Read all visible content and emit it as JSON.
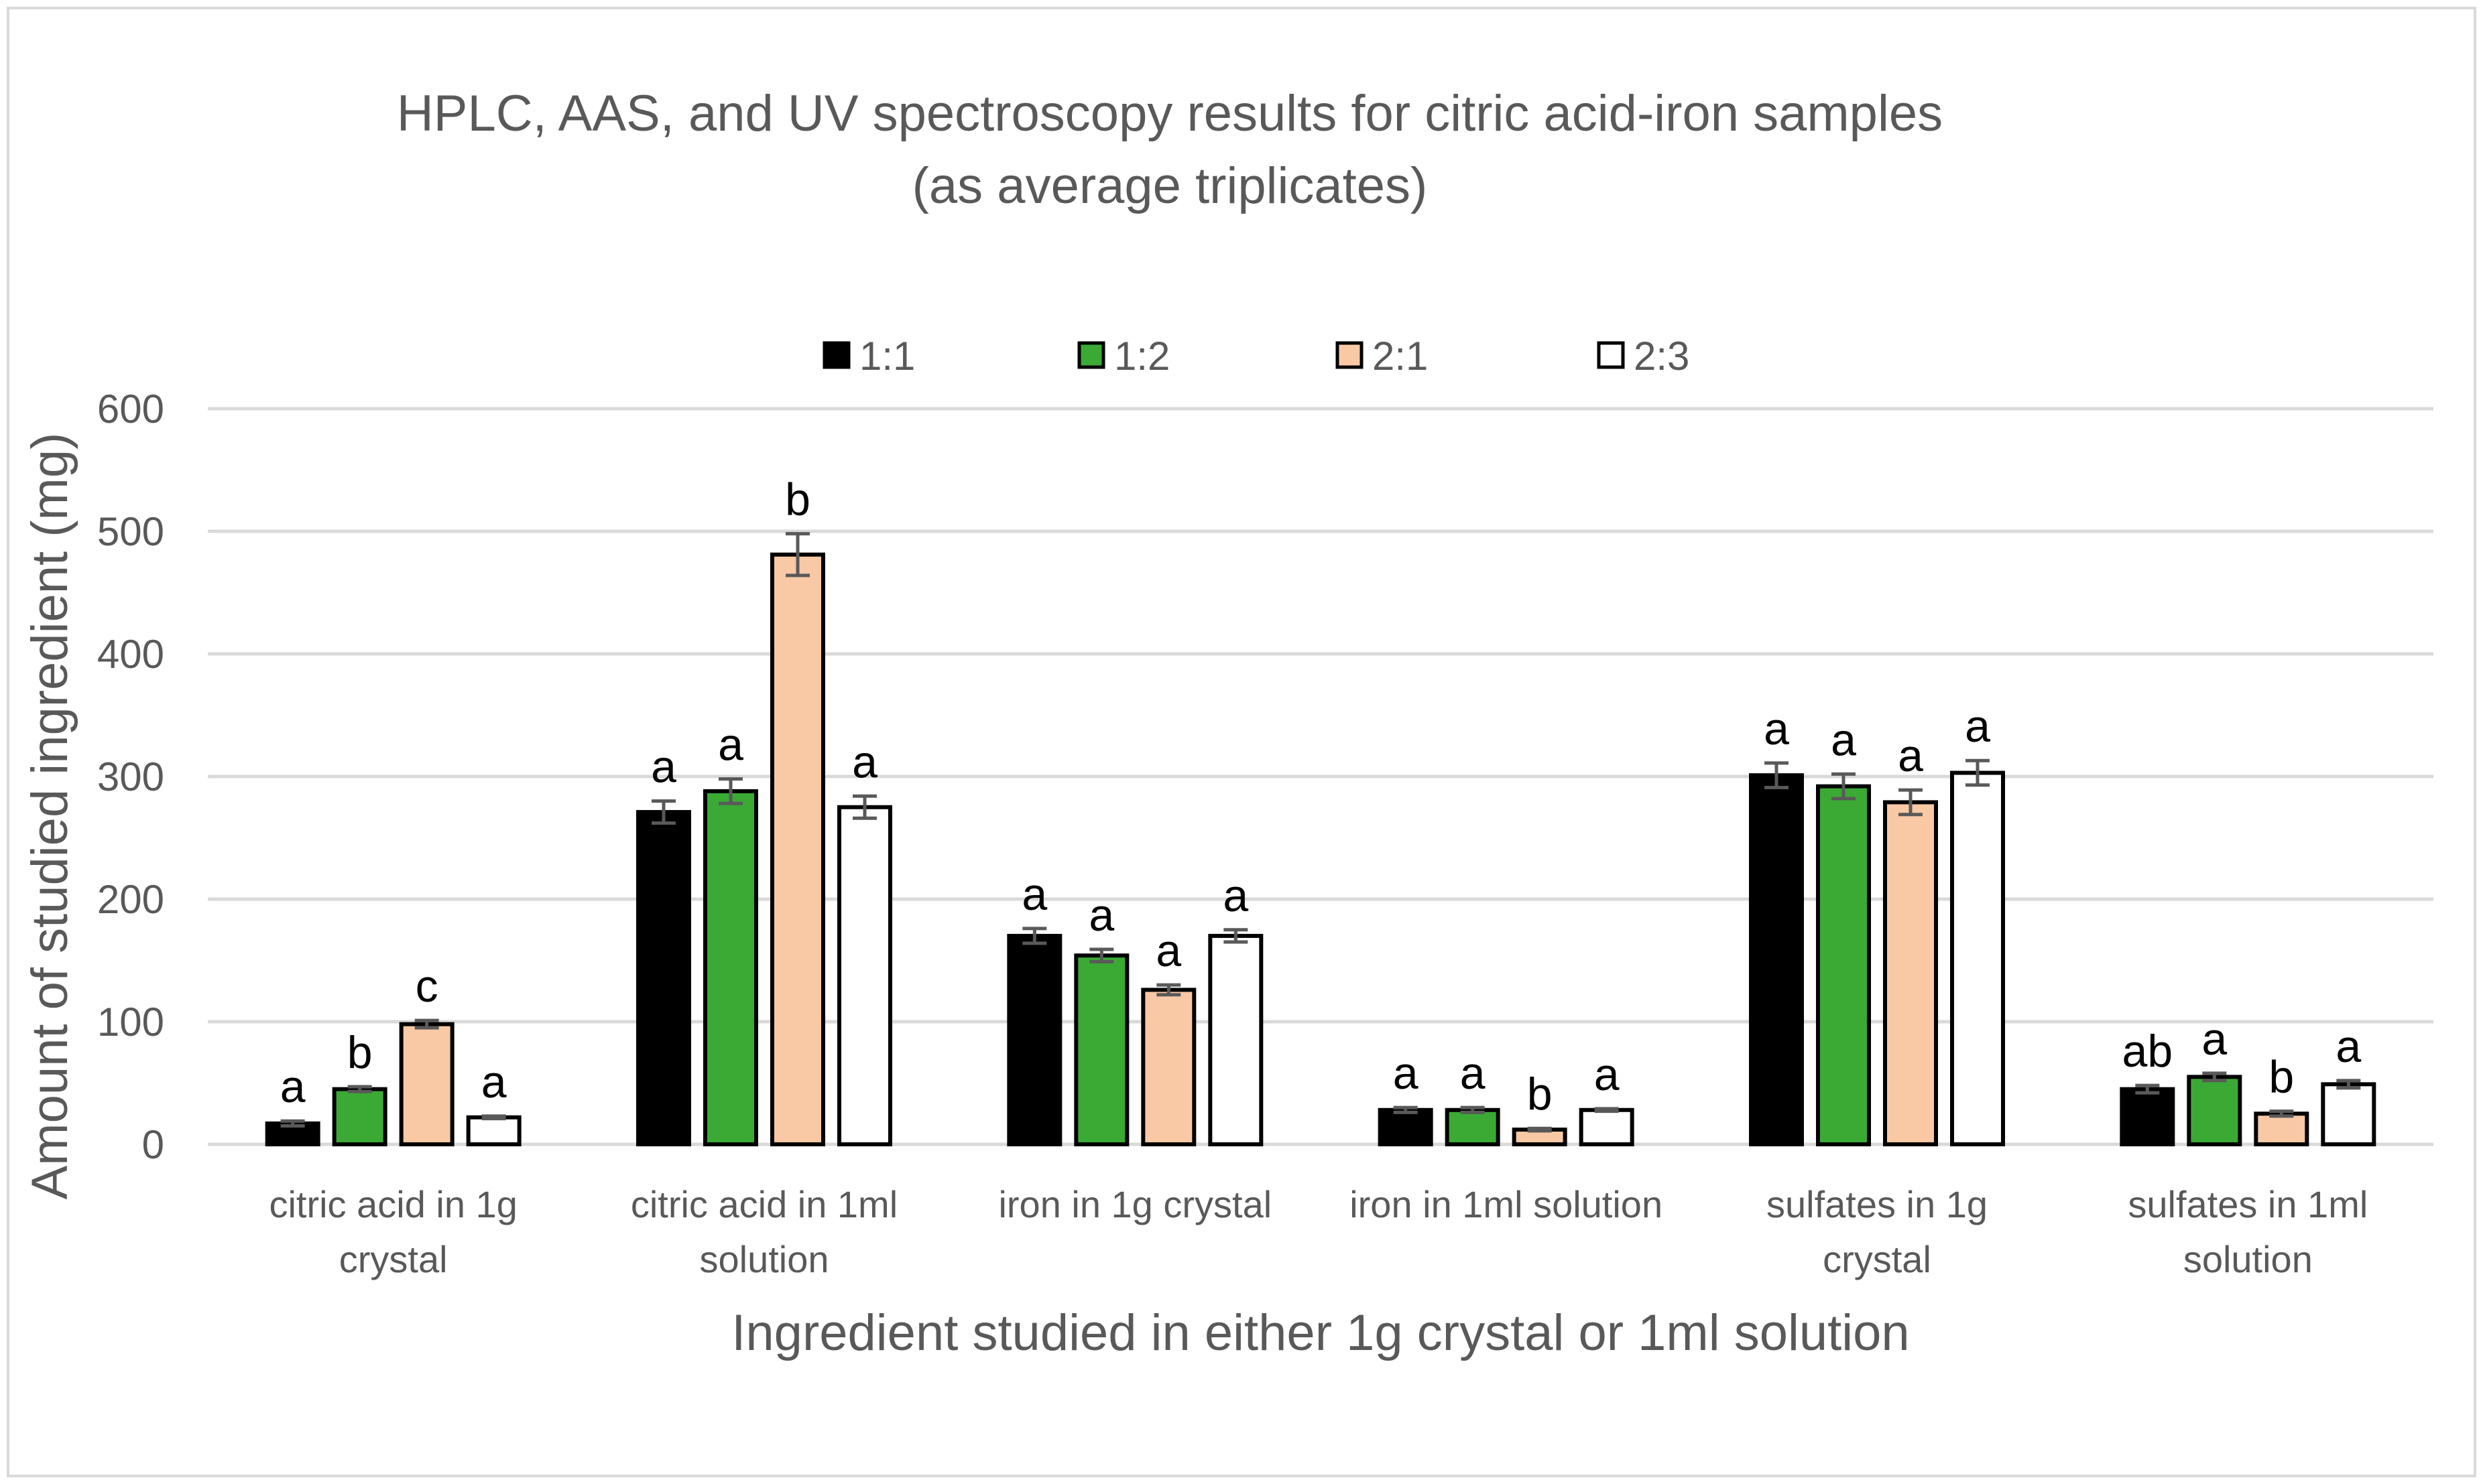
{
  "chart_data": {
    "type": "bar",
    "title": [
      "HPLC, AAS, and UV spectroscopy results for citric acid-iron samples",
      "(as average triplicates)"
    ],
    "xlabel": "Ingredient studied in either 1g crystal or 1ml solution",
    "ylabel": "Amount of studied ingredient (mg)",
    "ylim": [
      0,
      600
    ],
    "yticks": [
      0,
      100,
      200,
      300,
      400,
      500,
      600
    ],
    "grid": true,
    "legend_position": "top",
    "categories": [
      [
        "citric acid in 1g",
        "crystal"
      ],
      [
        "citric acid in 1ml",
        "solution"
      ],
      [
        "iron in 1g crystal"
      ],
      [
        "iron in 1ml solution"
      ],
      [
        "sulfates in 1g",
        "crystal"
      ],
      [
        "sulfates in 1ml",
        "solution"
      ]
    ],
    "series": [
      {
        "name": "1:1",
        "color": "#000000",
        "values": [
          17,
          271,
          170,
          28,
          301,
          45
        ],
        "errors": [
          2,
          9,
          6,
          2,
          10,
          3
        ],
        "letters": [
          "a",
          "a",
          "a",
          "a",
          "a",
          "ab"
        ]
      },
      {
        "name": "1:2",
        "color": "#3aaa35",
        "values": [
          45,
          288,
          154,
          28,
          292,
          55
        ],
        "errors": [
          2,
          10,
          5,
          2,
          10,
          3
        ],
        "letters": [
          "b",
          "a",
          "a",
          "a",
          "a",
          "a"
        ]
      },
      {
        "name": "2:1",
        "color": "#f9c9a5",
        "values": [
          98,
          481,
          126,
          12,
          279,
          25
        ],
        "errors": [
          3,
          17,
          4,
          1,
          10,
          2
        ],
        "letters": [
          "c",
          "b",
          "a",
          "b",
          "a",
          "b"
        ]
      },
      {
        "name": "2:3",
        "color": "#ffffff",
        "values": [
          22,
          275,
          170,
          28,
          303,
          49
        ],
        "errors": [
          1,
          9,
          5,
          1,
          10,
          3
        ],
        "letters": [
          "a",
          "a",
          "a",
          "a",
          "a",
          "a"
        ]
      }
    ]
  }
}
